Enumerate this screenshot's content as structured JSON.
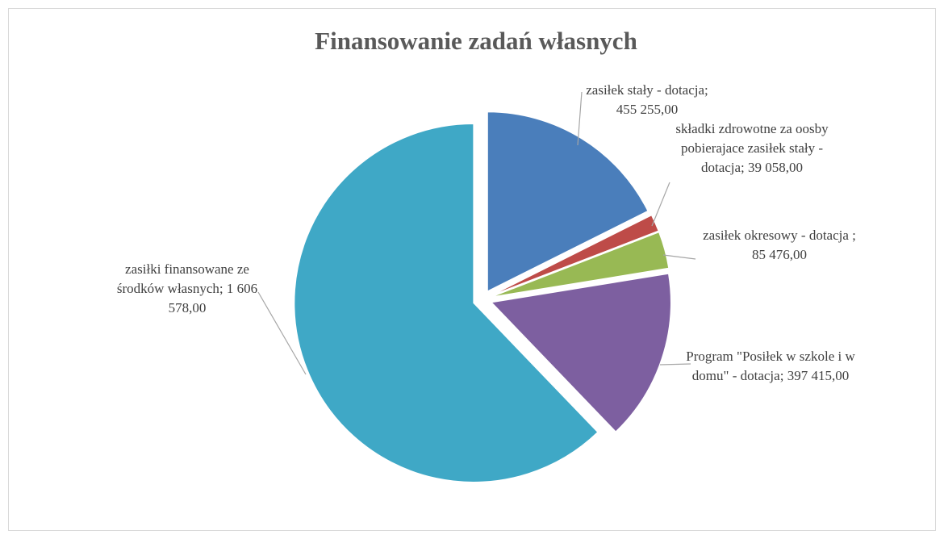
{
  "chart_data": {
    "type": "pie",
    "title": "Finansowanie zadań własnych",
    "categories": [
      "zasiłek stały - dotacja;",
      "składki zdrowotne za oosby pobierajace zasiłek stały - dotacja;",
      "zasiłek okresowy - dotacja ;",
      "Program \"Posiłek w szkole i w domu\" - dotacja;",
      "zasiłki finansowane ze środków własnych;"
    ],
    "values": [
      455255,
      39058,
      85476,
      397415,
      1606578
    ],
    "value_labels": [
      "455 255,00",
      "39 058,00",
      "85 476,00",
      "397 415,00",
      "1 606 578,00"
    ],
    "colors": [
      "#4a7ebb",
      "#be4b48",
      "#98b954",
      "#7d5fa0",
      "#3fa8c6"
    ]
  }
}
